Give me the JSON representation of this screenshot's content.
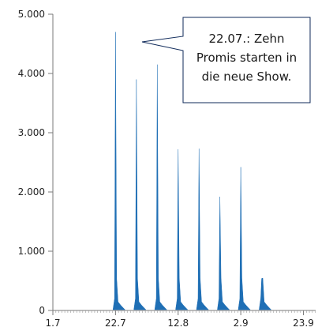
{
  "chart_data": {
    "type": "area",
    "x_tick_labels": [
      "1.7",
      "22.7",
      "12.8",
      "2.9",
      "23.9"
    ],
    "y_tick_labels": [
      "0",
      "1.000",
      "2.000",
      "3.000",
      "4.000",
      "5.000"
    ],
    "ylim": [
      0,
      5000
    ],
    "grid": false,
    "legend": "none",
    "series": [
      {
        "color": "#1f6fb5",
        "peaks": [
          {
            "day": 21,
            "value": 4700
          },
          {
            "day": 28,
            "value": 3900
          },
          {
            "day": 35,
            "value": 4150
          },
          {
            "day": 42,
            "value": 2720
          },
          {
            "day": 49,
            "value": 2730
          },
          {
            "day": 56,
            "value": 1920
          },
          {
            "day": 63,
            "value": 2420
          },
          {
            "day": 70,
            "value": 540
          }
        ]
      }
    ],
    "annotation": {
      "lines": [
        "22.07.: Zehn",
        "Promis starten in",
        "die neue Show."
      ]
    }
  }
}
